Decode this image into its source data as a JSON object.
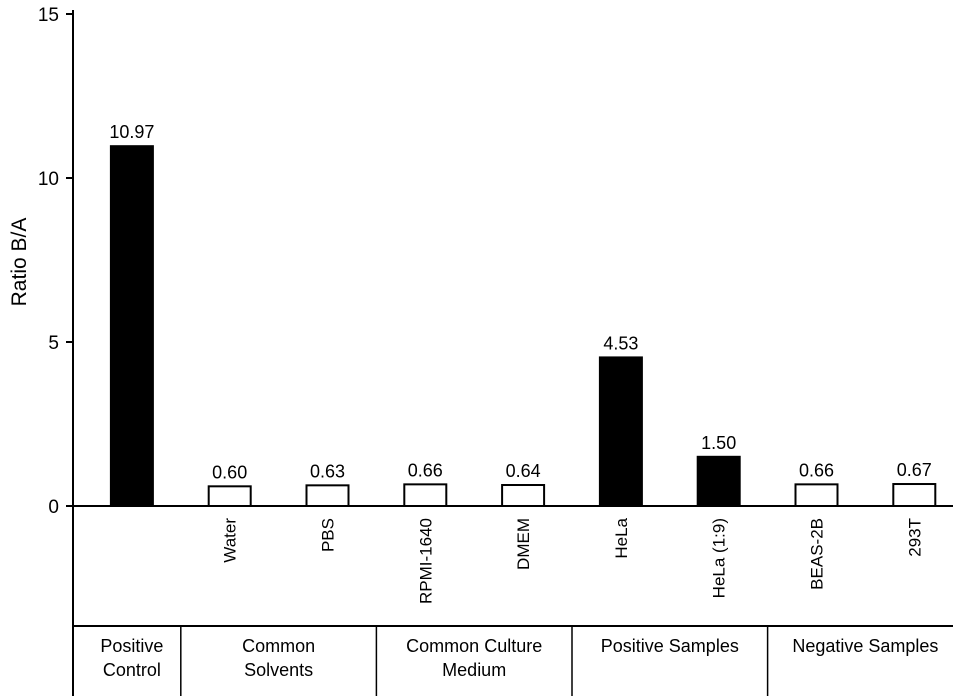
{
  "chart_data": {
    "type": "bar",
    "ylabel": "Ratio B/A",
    "ylim": [
      0,
      15
    ],
    "yticks": [
      0,
      5,
      10,
      15
    ],
    "grid": false,
    "categories": [
      "",
      "Water",
      "PBS",
      "RPMI-1640",
      "DMEM",
      "HeLa",
      "HeLa (1:9)",
      "BEAS-2B",
      "293T"
    ],
    "values": [
      10.97,
      0.6,
      0.63,
      0.66,
      0.64,
      4.53,
      1.5,
      0.66,
      0.67
    ],
    "value_labels": [
      "10.97",
      "0.60",
      "0.63",
      "0.66",
      "0.64",
      "4.53",
      "1.50",
      "0.66",
      "0.67"
    ],
    "bar_fill": [
      "#000000",
      "#ffffff",
      "#ffffff",
      "#ffffff",
      "#ffffff",
      "#000000",
      "#000000",
      "#ffffff",
      "#ffffff"
    ],
    "groups": [
      {
        "lines": [
          "Positive",
          "Control"
        ],
        "start": 0,
        "end": 0
      },
      {
        "lines": [
          "Common",
          "Solvents"
        ],
        "start": 1,
        "end": 2
      },
      {
        "lines": [
          "Common Culture",
          "Medium"
        ],
        "start": 3,
        "end": 4
      },
      {
        "lines": [
          "Positive Samples"
        ],
        "start": 5,
        "end": 6
      },
      {
        "lines": [
          "Negative Samples"
        ],
        "start": 7,
        "end": 8
      }
    ]
  }
}
